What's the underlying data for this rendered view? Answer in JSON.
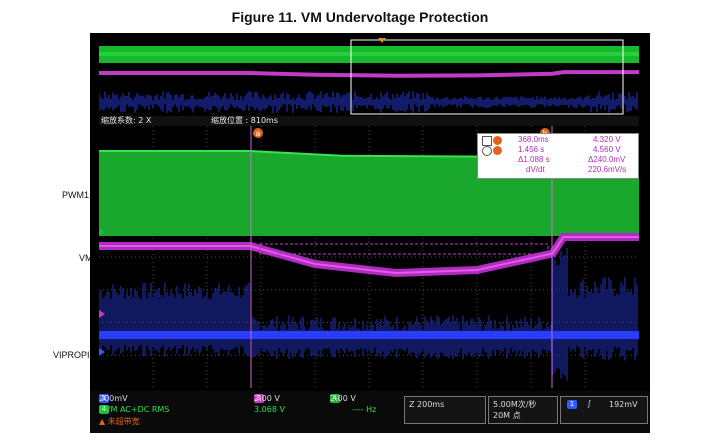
{
  "figure": {
    "title": "Figure 11. VM Undervoltage Protection"
  },
  "channels": [
    {
      "name": "PWM1",
      "color": "#1fb83a"
    },
    {
      "name": "VM",
      "color": "#c33acb"
    },
    {
      "name": "VIPROPI",
      "color": "#1f2ff2"
    }
  ],
  "zoom": {
    "factor_label": "缩放系数: 2 X",
    "position_label": "缩放位置 : 810ms"
  },
  "cursors": {
    "a_label": "a",
    "b_label": "b",
    "rows": [
      {
        "name": "a",
        "time": "368.0ms",
        "value": "4.320 V"
      },
      {
        "name": "b",
        "time": "1.456 s",
        "value": "4.560 V"
      },
      {
        "name": "delta",
        "time": "Δ1.088 s",
        "value": "Δ240.0mV"
      },
      {
        "name": "slope",
        "time": "dV/dt",
        "value": "220.6mV/s"
      }
    ]
  },
  "status": {
    "ch1": {
      "num": "1",
      "scale": "200mV",
      "color": "#2f5bff"
    },
    "ch3": {
      "num": "3",
      "scale": "2.00 V",
      "color": "#c33acb"
    },
    "ch4": {
      "num": "4",
      "scale": "2.00 V",
      "color": "#1fb83a"
    },
    "dvm": {
      "num": "4",
      "label": "DVM AC+DC RMS",
      "value": "3.068 V",
      "freq": "---- Hz"
    },
    "dvm_note": "▲ 未超带宽",
    "timebase": "Z 200ms",
    "sample_rate": "5.00M次/秒",
    "record": "20M 点",
    "trigger_ch": "1",
    "trigger_sym": "∫",
    "trigger_level": "192mV"
  },
  "chart_data": {
    "type": "line",
    "title": "Figure 11. VM Undervoltage Protection",
    "xlabel": "",
    "ylabel": "",
    "time_per_div": "200ms",
    "series": [
      {
        "name": "PWM1",
        "description": "PWM switching, solid band",
        "shape": [
          [
            0,
            1
          ],
          [
            0.28,
            1
          ],
          [
            0.45,
            0.92
          ],
          [
            0.85,
            0.9
          ],
          [
            0.86,
            1
          ],
          [
            1,
            1
          ]
        ]
      },
      {
        "name": "VM",
        "x": [
          0,
          0.28,
          0.4,
          0.55,
          0.7,
          0.84,
          0.86,
          1
        ],
        "y": [
          4.5,
          4.5,
          4.38,
          4.32,
          4.34,
          4.45,
          4.56,
          4.56
        ]
      },
      {
        "name": "VIPROPI",
        "description": "current sense noise; drops after cursor a, recovers with spike at cursor b"
      }
    ],
    "cursors": [
      {
        "label": "a",
        "time": "368.0ms",
        "value": "4.320 V"
      },
      {
        "label": "b",
        "time": "1.456 s",
        "value": "4.560 V"
      }
    ]
  }
}
